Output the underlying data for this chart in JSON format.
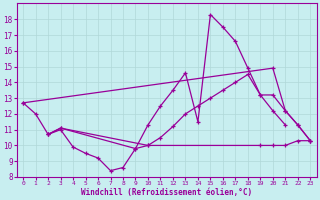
{
  "background_color": "#c8eef0",
  "grid_color": "#b0d8d8",
  "line_color": "#990099",
  "xlabel": "Windchill (Refroidissement éolien,°C)",
  "xlim": [
    -0.5,
    23.5
  ],
  "ylim": [
    8,
    19
  ],
  "xticks": [
    0,
    1,
    2,
    3,
    4,
    5,
    6,
    7,
    8,
    9,
    10,
    11,
    12,
    13,
    14,
    15,
    16,
    17,
    18,
    19,
    20,
    21,
    22,
    23
  ],
  "yticks": [
    8,
    9,
    10,
    11,
    12,
    13,
    14,
    15,
    16,
    17,
    18
  ],
  "line1_x": [
    0,
    1,
    2,
    3,
    4,
    5,
    6,
    7,
    8,
    9,
    10,
    11,
    12,
    13,
    14,
    15,
    16,
    17,
    18,
    19,
    20,
    21
  ],
  "line1_y": [
    12.7,
    12.0,
    10.7,
    11.0,
    9.9,
    9.5,
    9.2,
    8.4,
    8.6,
    9.8,
    11.3,
    12.5,
    13.5,
    14.6,
    11.5,
    18.3,
    17.5,
    16.6,
    14.9,
    13.2,
    12.2,
    11.3
  ],
  "line2_x": [
    0,
    20,
    21,
    22,
    23
  ],
  "line2_y": [
    12.7,
    14.9,
    12.2,
    11.3,
    10.3
  ],
  "line3_x": [
    2,
    3,
    10,
    11,
    12,
    13,
    14,
    15,
    16,
    17,
    18,
    19,
    20,
    21,
    22,
    23
  ],
  "line3_y": [
    10.7,
    11.1,
    10.0,
    10.5,
    11.2,
    12.0,
    12.5,
    13.0,
    13.5,
    14.0,
    14.5,
    13.2,
    13.2,
    12.2,
    11.3,
    10.3
  ],
  "line4_x": [
    2,
    3,
    9,
    10,
    19,
    20,
    21,
    22,
    23
  ],
  "line4_y": [
    10.7,
    11.1,
    9.8,
    10.0,
    10.0,
    10.0,
    10.0,
    10.3,
    10.3
  ]
}
